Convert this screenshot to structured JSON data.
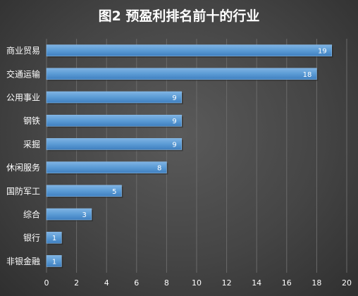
{
  "chart_data": {
    "type": "bar",
    "orientation": "horizontal",
    "title": "图2 预盈利排名前十的行业",
    "categories": [
      "商业贸易",
      "交通运输",
      "公用事业",
      "钢铁",
      "采掘",
      "休闲服务",
      "国防军工",
      "综合",
      "银行",
      "非银金融"
    ],
    "values": [
      19,
      18,
      9,
      9,
      9,
      8,
      5,
      3,
      1,
      1
    ],
    "xlim": [
      0,
      20
    ],
    "xticks": [
      0,
      2,
      4,
      6,
      8,
      10,
      12,
      14,
      16,
      18,
      20
    ],
    "grid": "vertical",
    "legend": "none",
    "bar_color": "#5b9bd5",
    "background_color": "#444444"
  }
}
